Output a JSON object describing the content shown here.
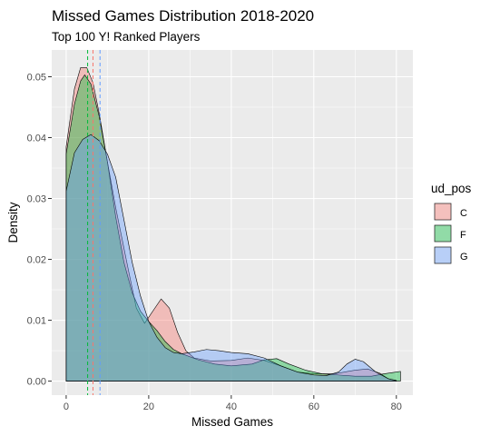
{
  "chart_data": {
    "type": "area",
    "title": "Missed Games Distribution 2018-2020",
    "subtitle": "Top 100 Y! Ranked Players",
    "xlabel": "Missed Games",
    "ylabel": "Density",
    "xlim": [
      -3.5,
      84
    ],
    "ylim": [
      -0.0023,
      0.0544
    ],
    "x_ticks": [
      0,
      20,
      40,
      60,
      80
    ],
    "y_ticks": [
      0.0,
      0.01,
      0.02,
      0.03,
      0.04,
      0.05
    ],
    "x_tick_labels": [
      "0",
      "20",
      "40",
      "60",
      "80"
    ],
    "y_tick_labels": [
      "0.00",
      "0.01",
      "0.02",
      "0.03",
      "0.04",
      "0.05"
    ],
    "grid": true,
    "legend": {
      "title": "ud_pos",
      "position": "right"
    },
    "series": [
      {
        "name": "C",
        "fill": "#F8766D",
        "line": "#F8766D",
        "mean": 6.5,
        "points": [
          [
            0,
            0.0385
          ],
          [
            2,
            0.048
          ],
          [
            3.5,
            0.0515
          ],
          [
            5,
            0.0515
          ],
          [
            6.5,
            0.049
          ],
          [
            8,
            0.044
          ],
          [
            10,
            0.036
          ],
          [
            12,
            0.0285
          ],
          [
            15,
            0.0185
          ],
          [
            17,
            0.012
          ],
          [
            19,
            0.0095
          ],
          [
            21,
            0.0115
          ],
          [
            23,
            0.0135
          ],
          [
            25,
            0.012
          ],
          [
            27,
            0.008
          ],
          [
            29,
            0.005
          ],
          [
            31,
            0.0038
          ],
          [
            35,
            0.0033
          ],
          [
            40,
            0.0034
          ],
          [
            44,
            0.0038
          ],
          [
            48,
            0.0034
          ],
          [
            52,
            0.0025
          ],
          [
            56,
            0.0015
          ],
          [
            60,
            0.0012
          ],
          [
            65,
            0.0012
          ],
          [
            70,
            0.0018
          ],
          [
            73,
            0.002
          ],
          [
            76,
            0.0013
          ],
          [
            78,
            0.0004
          ],
          [
            80,
            0.0001
          ]
        ]
      },
      {
        "name": "F",
        "fill": "#00BA38",
        "line": "#00BA38",
        "mean": 5.2,
        "points": [
          [
            0,
            0.0373
          ],
          [
            2,
            0.0455
          ],
          [
            3.5,
            0.0493
          ],
          [
            4.5,
            0.0503
          ],
          [
            6,
            0.0488
          ],
          [
            8,
            0.0435
          ],
          [
            10,
            0.036
          ],
          [
            12,
            0.027
          ],
          [
            14,
            0.0195
          ],
          [
            16,
            0.0145
          ],
          [
            18,
            0.0115
          ],
          [
            20,
            0.0098
          ],
          [
            22,
            0.0083
          ],
          [
            24,
            0.0065
          ],
          [
            26,
            0.0052
          ],
          [
            28,
            0.0045
          ],
          [
            32,
            0.0035
          ],
          [
            36,
            0.0028
          ],
          [
            40,
            0.0025
          ],
          [
            45,
            0.0028
          ],
          [
            48,
            0.0035
          ],
          [
            51,
            0.0037
          ],
          [
            54,
            0.0028
          ],
          [
            58,
            0.0018
          ],
          [
            62,
            0.0012
          ],
          [
            66,
            0.001
          ],
          [
            70,
            0.0008
          ],
          [
            74,
            0.0008
          ],
          [
            77,
            0.0012
          ],
          [
            80,
            0.0015
          ],
          [
            81,
            0.0016
          ]
        ]
      },
      {
        "name": "G",
        "fill": "#619CFF",
        "line": "#619CFF",
        "mean": 8.2,
        "points": [
          [
            0,
            0.0312
          ],
          [
            2,
            0.0375
          ],
          [
            4,
            0.0397
          ],
          [
            6,
            0.0405
          ],
          [
            8,
            0.0395
          ],
          [
            10,
            0.0373
          ],
          [
            12,
            0.0335
          ],
          [
            14,
            0.0265
          ],
          [
            16,
            0.0195
          ],
          [
            18,
            0.014
          ],
          [
            20,
            0.0098
          ],
          [
            22,
            0.0072
          ],
          [
            24,
            0.0055
          ],
          [
            26,
            0.0047
          ],
          [
            28,
            0.0045
          ],
          [
            31,
            0.0048
          ],
          [
            34,
            0.0052
          ],
          [
            37,
            0.005
          ],
          [
            40,
            0.0047
          ],
          [
            44,
            0.0045
          ],
          [
            48,
            0.0038
          ],
          [
            52,
            0.0025
          ],
          [
            56,
            0.0015
          ],
          [
            60,
            0.001
          ],
          [
            63,
            0.0009
          ],
          [
            66,
            0.0015
          ],
          [
            68,
            0.0028
          ],
          [
            70,
            0.0036
          ],
          [
            72,
            0.0032
          ],
          [
            75,
            0.0015
          ],
          [
            78,
            0.0004
          ],
          [
            80,
            0.0001
          ]
        ]
      }
    ]
  }
}
